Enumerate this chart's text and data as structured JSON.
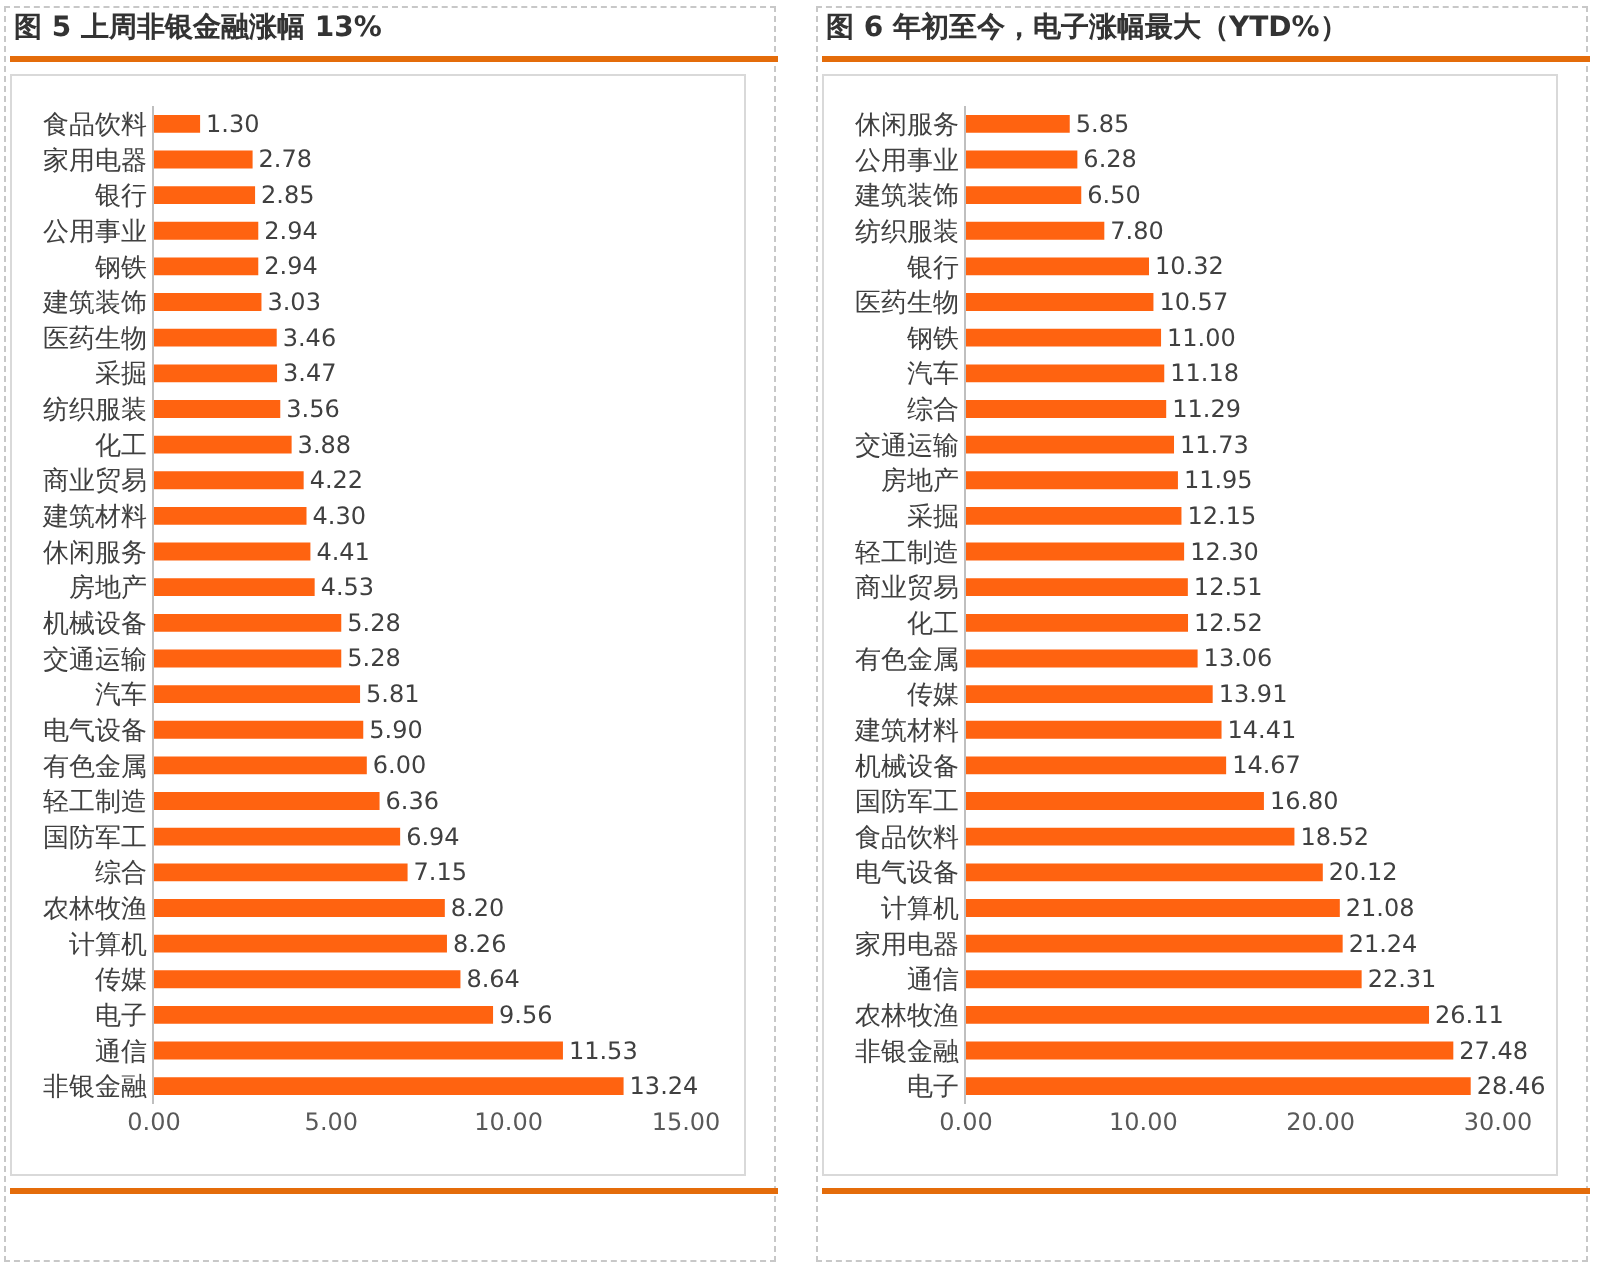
{
  "chart_data": [
    {
      "type": "bar",
      "orientation": "horizontal",
      "title": "图 5 上周非银金融涨幅 13%",
      "categories": [
        "食品饮料",
        "家用电器",
        "银行",
        "公用事业",
        "钢铁",
        "建筑装饰",
        "医药生物",
        "采掘",
        "纺织服装",
        "化工",
        "商业贸易",
        "建筑材料",
        "休闲服务",
        "房地产",
        "机械设备",
        "交通运输",
        "汽车",
        "电气设备",
        "有色金属",
        "轻工制造",
        "国防军工",
        "综合",
        "农林牧渔",
        "计算机",
        "传媒",
        "电子",
        "通信",
        "非银金融"
      ],
      "values": [
        1.3,
        2.78,
        2.85,
        2.94,
        2.94,
        3.03,
        3.46,
        3.47,
        3.56,
        3.88,
        4.22,
        4.3,
        4.41,
        4.53,
        5.28,
        5.28,
        5.81,
        5.9,
        6.0,
        6.36,
        6.94,
        7.15,
        8.2,
        8.26,
        8.64,
        9.56,
        11.53,
        13.24
      ],
      "value_labels": [
        "1.30",
        "2.78",
        "2.85",
        "2.94",
        "2.94",
        "3.03",
        "3.46",
        "3.47",
        "3.56",
        "3.88",
        "4.22",
        "4.30",
        "4.41",
        "4.53",
        "5.28",
        "5.28",
        "5.81",
        "5.90",
        "6.00",
        "6.36",
        "6.94",
        "7.15",
        "8.20",
        "8.26",
        "8.64",
        "9.56",
        "11.53",
        "13.24"
      ],
      "color": "#ff6310",
      "xlim": [
        0,
        15
      ],
      "xticks": [
        {
          "value": 0,
          "label": "0.00"
        },
        {
          "value": 5,
          "label": "5.00"
        },
        {
          "value": 10,
          "label": "10.00"
        },
        {
          "value": 15,
          "label": "15.00"
        }
      ]
    },
    {
      "type": "bar",
      "orientation": "horizontal",
      "title": "图 6 年初至今，电子涨幅最大（YTD%）",
      "categories": [
        "休闲服务",
        "公用事业",
        "建筑装饰",
        "纺织服装",
        "银行",
        "医药生物",
        "钢铁",
        "汽车",
        "综合",
        "交通运输",
        "房地产",
        "采掘",
        "轻工制造",
        "商业贸易",
        "化工",
        "有色金属",
        "传媒",
        "建筑材料",
        "机械设备",
        "国防军工",
        "食品饮料",
        "电气设备",
        "计算机",
        "家用电器",
        "通信",
        "农林牧渔",
        "非银金融",
        "电子"
      ],
      "values": [
        5.85,
        6.28,
        6.5,
        7.8,
        10.32,
        10.57,
        11.0,
        11.18,
        11.29,
        11.73,
        11.95,
        12.15,
        12.3,
        12.51,
        12.52,
        13.06,
        13.91,
        14.41,
        14.67,
        16.8,
        18.52,
        20.12,
        21.08,
        21.24,
        22.31,
        26.11,
        27.48,
        28.46
      ],
      "value_labels": [
        "5.85",
        "6.28",
        "6.50",
        "7.80",
        "10.32",
        "10.57",
        "11.00",
        "11.18",
        "11.29",
        "11.73",
        "11.95",
        "12.15",
        "12.30",
        "12.51",
        "12.52",
        "13.06",
        "13.91",
        "14.41",
        "14.67",
        "16.80",
        "18.52",
        "20.12",
        "21.08",
        "21.24",
        "22.31",
        "26.11",
        "27.48",
        "28.46"
      ],
      "color": "#ff6310",
      "xlim": [
        0,
        30
      ],
      "xticks": [
        {
          "value": 0,
          "label": "0.00"
        },
        {
          "value": 10,
          "label": "10.00"
        },
        {
          "value": 20,
          "label": "20.00"
        },
        {
          "value": 30,
          "label": "30.00"
        }
      ]
    }
  ]
}
